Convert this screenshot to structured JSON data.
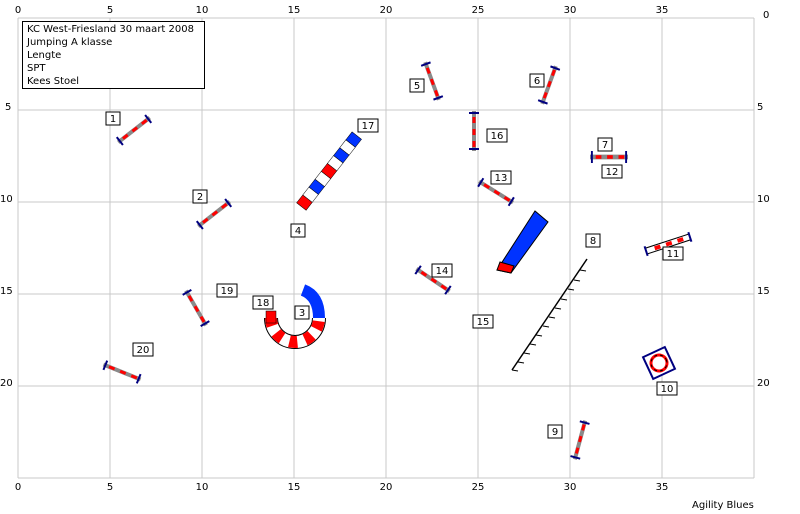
{
  "header": {
    "lines": [
      "KC West-Friesland 30 maart 2008",
      "Jumping A klasse",
      "Lengte",
      "SPT",
      "Kees Stoel"
    ]
  },
  "footer": {
    "credit": "Agility Blues"
  },
  "grid": {
    "x_ticks": [
      "0",
      "5",
      "10",
      "15",
      "20",
      "25",
      "30",
      "35"
    ],
    "y_ticks": [
      "0",
      "5",
      "10",
      "15",
      "20"
    ]
  },
  "obstacles": [
    {
      "number": "1",
      "kind": "jump"
    },
    {
      "number": "2",
      "kind": "jump"
    },
    {
      "number": "3",
      "kind": "tunnel"
    },
    {
      "number": "4",
      "kind": "tunnel"
    },
    {
      "number": "5",
      "kind": "jump"
    },
    {
      "number": "6",
      "kind": "jump"
    },
    {
      "number": "7",
      "kind": "jump"
    },
    {
      "number": "8",
      "kind": "weave-poles"
    },
    {
      "number": "9",
      "kind": "jump"
    },
    {
      "number": "10",
      "kind": "tire"
    },
    {
      "number": "11",
      "kind": "long-jump"
    },
    {
      "number": "12",
      "kind": "jump"
    },
    {
      "number": "13",
      "kind": "jump"
    },
    {
      "number": "14",
      "kind": "jump"
    },
    {
      "number": "15",
      "kind": "weave-poles"
    },
    {
      "number": "16",
      "kind": "jump"
    },
    {
      "number": "17",
      "kind": "tunnel"
    },
    {
      "number": "18",
      "kind": "tunnel"
    },
    {
      "number": "19",
      "kind": "jump"
    },
    {
      "number": "20",
      "kind": "jump"
    }
  ],
  "colors": {
    "grid": "#c8c8c8",
    "pole_red": "#ff0000",
    "pole_blue": "#0000cc",
    "tunnel_red": "#ff0000",
    "tunnel_blue": "#0033ff",
    "wing": "#000080"
  }
}
